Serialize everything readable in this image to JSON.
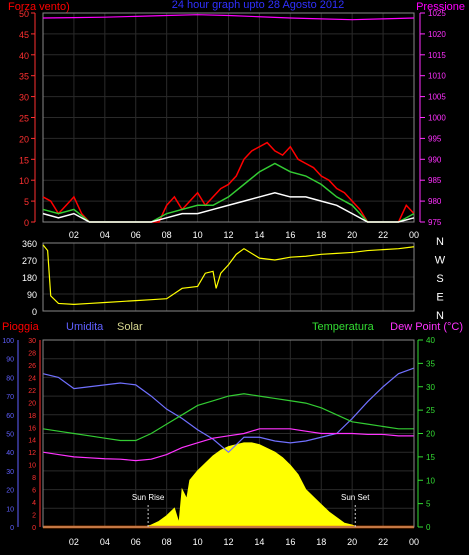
{
  "chart_data": [
    {
      "id": "wind-pressure",
      "type": "line",
      "title": "24 hour graph upto 28 Agosto 2012",
      "left_label": "Forza vento)",
      "right_label": "Pressione",
      "y_left": {
        "range": [
          0,
          50
        ],
        "ticks": [
          "0",
          "5",
          "10",
          "15",
          "20",
          "25",
          "30",
          "35",
          "40",
          "45",
          "50"
        ]
      },
      "y_right": {
        "range": [
          975,
          1025
        ],
        "ticks": [
          "975",
          "980",
          "985",
          "990",
          "995",
          "1000",
          "1005",
          "1010",
          "1015",
          "1020",
          "1025"
        ]
      },
      "x_ticks": [
        "02",
        "04",
        "06",
        "08",
        "10",
        "12",
        "14",
        "16",
        "18",
        "20",
        "22",
        "00"
      ],
      "x_range": [
        0,
        24
      ],
      "grid": true,
      "series": [
        {
          "name": "Forza vento",
          "color": "#ff0000",
          "x": [
            0,
            0.5,
            1,
            1.5,
            2,
            2.5,
            3,
            4,
            5,
            6,
            7,
            7.5,
            8,
            8.5,
            9,
            9.5,
            10,
            10.5,
            11,
            11.5,
            12,
            12.5,
            13,
            13.5,
            14,
            14.5,
            15,
            15.5,
            16,
            16.5,
            17,
            17.5,
            18,
            18.5,
            19,
            19.5,
            20,
            20.5,
            21,
            22,
            23,
            23.5,
            24
          ],
          "y": [
            6,
            5,
            2,
            4,
            6,
            2,
            0,
            0,
            0,
            0,
            0,
            0,
            4,
            6,
            3,
            5,
            7,
            4,
            6,
            8,
            9,
            11,
            15,
            17,
            18,
            19,
            17,
            16,
            18,
            15,
            14,
            13,
            11,
            10,
            8,
            7,
            5,
            3,
            0,
            0,
            0,
            4,
            2
          ]
        },
        {
          "name": "Raffica",
          "color": "#33cc33",
          "x": [
            0,
            1,
            2,
            3,
            4,
            6,
            7,
            8,
            9,
            10,
            11,
            12,
            13,
            14,
            15,
            16,
            17,
            18,
            19,
            20,
            21,
            22,
            23,
            24
          ],
          "y": [
            3,
            2,
            3,
            0,
            0,
            0,
            0,
            2,
            3,
            4,
            4,
            6,
            9,
            12,
            14,
            12,
            11,
            9,
            6,
            4,
            0,
            0,
            0,
            2
          ]
        },
        {
          "name": "Vento medio",
          "color": "#ffffff",
          "x": [
            0,
            1,
            2,
            3,
            4,
            6,
            7,
            8,
            9,
            10,
            11,
            12,
            13,
            14,
            15,
            16,
            17,
            18,
            19,
            20,
            21,
            22,
            23,
            24
          ],
          "y": [
            2,
            1,
            2,
            0,
            0,
            0,
            0,
            1,
            2,
            2,
            3,
            4,
            5,
            6,
            7,
            6,
            6,
            5,
            4,
            2,
            0,
            0,
            0,
            1
          ]
        },
        {
          "name": "Pressione",
          "color": "#ff00ff",
          "x": [
            0,
            2,
            4,
            6,
            8,
            10,
            12,
            14,
            16,
            18,
            20,
            22,
            24
          ],
          "y": [
            1023.8,
            1023.9,
            1024.0,
            1024.2,
            1024.4,
            1024.6,
            1024.4,
            1024.1,
            1023.8,
            1023.6,
            1023.4,
            1023.6,
            1023.8
          ]
        }
      ]
    },
    {
      "id": "wind-direction",
      "type": "line",
      "y_left": {
        "range": [
          0,
          360
        ],
        "ticks": [
          "0",
          "90",
          "180",
          "270",
          "360"
        ]
      },
      "right_letters": [
        "N",
        "W",
        "S",
        "E",
        "N"
      ],
      "x_range": [
        0,
        24
      ],
      "grid": true,
      "series": [
        {
          "name": "Direzione vento",
          "color": "#ffff00",
          "x": [
            0,
            0.3,
            0.5,
            1,
            2,
            3,
            4,
            5,
            6,
            7,
            8,
            9,
            10,
            10.5,
            11,
            11.2,
            11.5,
            12,
            12.5,
            13,
            14,
            15,
            16,
            17,
            18,
            19,
            20,
            21,
            22,
            23,
            24
          ],
          "y": [
            350,
            320,
            80,
            40,
            35,
            40,
            45,
            50,
            55,
            60,
            65,
            120,
            130,
            200,
            210,
            120,
            200,
            245,
            300,
            330,
            280,
            270,
            285,
            290,
            300,
            305,
            310,
            320,
            325,
            330,
            340
          ]
        }
      ]
    },
    {
      "id": "temp-humidity-solar",
      "type": "line",
      "labels": {
        "pioggia": "Pioggia",
        "umidita": "Umidita",
        "solar": "Solar",
        "temperatura": "Temperatura",
        "dewpoint": "Dew Point (°C)"
      },
      "annotations": [
        {
          "text": "Sun Rise",
          "x": 6.8
        },
        {
          "text": "Sun Set",
          "x": 20.2
        }
      ],
      "y_axes": {
        "pioggia": {
          "range": [
            0,
            100
          ],
          "ticks": [
            "0",
            "10",
            "20",
            "30",
            "40",
            "50",
            "60",
            "70",
            "80",
            "90",
            "100"
          ]
        },
        "umidita": {
          "range": [
            0,
            30
          ],
          "ticks": [
            "0",
            "2",
            "4",
            "6",
            "8",
            "10",
            "12",
            "14",
            "16",
            "18",
            "20",
            "22",
            "24",
            "26",
            "28",
            "30"
          ]
        },
        "right": {
          "range": [
            0,
            40
          ],
          "ticks": [
            "0",
            "5",
            "10",
            "15",
            "20",
            "25",
            "30",
            "35",
            "40"
          ]
        }
      },
      "x_ticks": [
        "02",
        "04",
        "06",
        "08",
        "10",
        "12",
        "14",
        "16",
        "18",
        "20",
        "22",
        "00"
      ],
      "x_range": [
        0,
        24
      ],
      "grid": true,
      "series": [
        {
          "name": "Umidita",
          "color": "#7070ff",
          "axis": "pioggia",
          "x": [
            0,
            1,
            2,
            3,
            4,
            5,
            6,
            7,
            8,
            9,
            10,
            11,
            12,
            13,
            14,
            15,
            16,
            17,
            18,
            19,
            20,
            21,
            22,
            23,
            24
          ],
          "y": [
            82,
            80,
            74,
            75,
            76,
            77,
            76,
            70,
            63,
            58,
            52,
            47,
            40,
            48,
            48,
            46,
            45,
            46,
            48,
            50,
            58,
            67,
            75,
            82,
            85
          ]
        },
        {
          "name": "Temperatura",
          "color": "#33cc33",
          "axis": "right",
          "x": [
            0,
            1,
            2,
            3,
            4,
            5,
            6,
            7,
            8,
            9,
            10,
            11,
            12,
            13,
            14,
            15,
            16,
            17,
            18,
            19,
            20,
            21,
            22,
            23,
            24
          ],
          "y": [
            21,
            20.5,
            20,
            19.5,
            19,
            18.5,
            18.5,
            20,
            22,
            24,
            26,
            27,
            28,
            28.5,
            28,
            27.5,
            27,
            26.5,
            25.5,
            24,
            22.5,
            22,
            21.5,
            21,
            21
          ]
        },
        {
          "name": "Dew Point",
          "color": "#ff33ff",
          "axis": "right",
          "x": [
            0,
            1,
            2,
            3,
            4,
            5,
            6,
            7,
            8,
            9,
            10,
            11,
            12,
            13,
            14,
            15,
            16,
            17,
            18,
            19,
            20,
            21,
            22,
            23,
            24
          ],
          "y": [
            16,
            15.5,
            15,
            14.8,
            14.6,
            14.5,
            14.2,
            14.5,
            15.5,
            17,
            18,
            19,
            19.5,
            20,
            21,
            21,
            21,
            20.5,
            20,
            20,
            20,
            19.8,
            19.8,
            19.5,
            19.5
          ]
        },
        {
          "name": "Solar",
          "color": "#ffff00",
          "axis": "pioggia",
          "type": "area",
          "x": [
            6.6,
            7,
            7.5,
            8,
            8.5,
            8.8,
            9,
            9.3,
            9.5,
            10,
            10.5,
            11,
            11.5,
            12,
            12.5,
            13,
            13.5,
            14,
            14.5,
            15,
            15.5,
            16,
            16.5,
            17,
            17.5,
            18,
            18.5,
            19,
            19.5,
            20,
            20.3
          ],
          "y": [
            0,
            1,
            3,
            6,
            10,
            2,
            20,
            15,
            25,
            30,
            34,
            38,
            41,
            43,
            44,
            45,
            45,
            44,
            42,
            40,
            37,
            33,
            28,
            20,
            16,
            12,
            8,
            5,
            2,
            1,
            0
          ]
        },
        {
          "name": "Pioggia",
          "color": "#ff6600",
          "axis": "pioggia",
          "x": [
            0,
            24
          ],
          "y": [
            0,
            0
          ]
        }
      ]
    }
  ]
}
